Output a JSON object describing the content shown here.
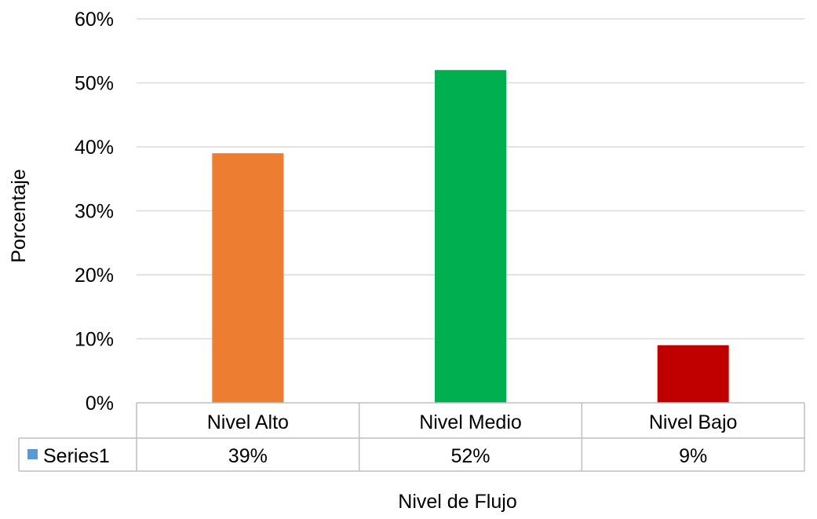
{
  "chart_data": {
    "type": "bar",
    "categories": [
      "Nivel Alto",
      "Nivel Medio",
      "Nivel Bajo"
    ],
    "series": [
      {
        "name": "Series1",
        "values": [
          39,
          52,
          9
        ],
        "labels": [
          "39%",
          "52%",
          "9%"
        ]
      }
    ],
    "bar_colors": [
      "#ED7D31",
      "#00B050",
      "#C00000"
    ],
    "legend_key_color": "#5B9BD5",
    "xlabel": "Nivel de Flujo",
    "ylabel": "Porcentaje",
    "ylim": [
      0,
      60
    ],
    "yticks": [
      "0%",
      "10%",
      "20%",
      "30%",
      "40%",
      "50%",
      "60%"
    ],
    "grid": true,
    "legend": "data-table"
  }
}
